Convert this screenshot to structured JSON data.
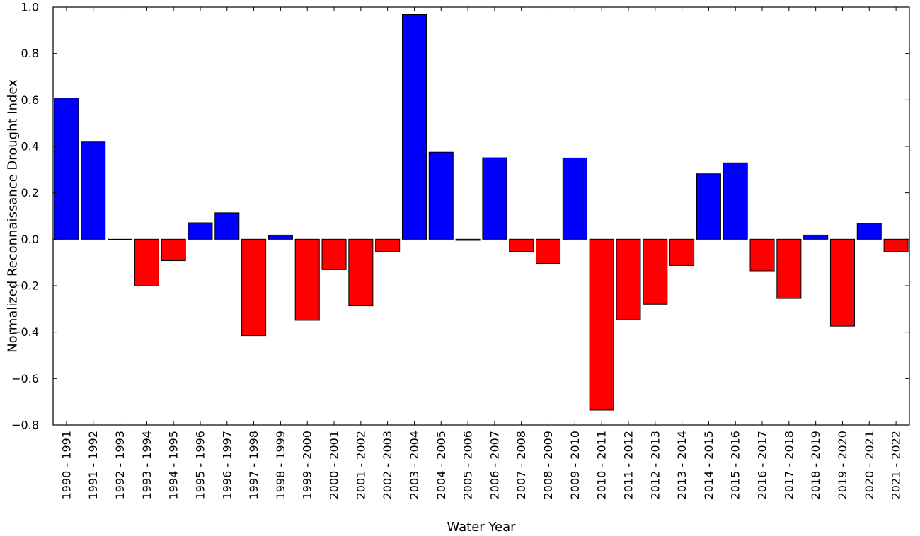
{
  "chart_data": {
    "type": "bar",
    "title": "",
    "xlabel": "Water Year",
    "ylabel": "Normalized Reconnaissance Drought Index",
    "ylim": [
      -0.8,
      1.0
    ],
    "yticks": [
      -0.8,
      -0.6,
      -0.4,
      -0.2,
      0.0,
      0.2,
      0.4,
      0.6,
      0.8,
      1.0
    ],
    "ytick_labels": [
      "−0.8",
      "−0.6",
      "−0.4",
      "−0.2",
      "0.0",
      "0.2",
      "0.4",
      "0.6",
      "0.8",
      "1.0"
    ],
    "grid": false,
    "positive_color": "#0000ff",
    "negative_color": "#ff0000",
    "categories": [
      "1990 - 1991",
      "1991 - 1992",
      "1992 - 1993",
      "1993 - 1994",
      "1994 - 1995",
      "1995 - 1996",
      "1996 - 1997",
      "1997 - 1998",
      "1998 - 1999",
      "1999 - 2000",
      "2000 - 2001",
      "2001 - 2002",
      "2002 - 2003",
      "2003 - 2004",
      "2004 - 2005",
      "2005 - 2006",
      "2006 - 2007",
      "2007 - 2008",
      "2008 - 2009",
      "2009 - 2010",
      "2010 - 2011",
      "2011 - 2012",
      "2012 - 2013",
      "2013 - 2014",
      "2014 - 2015",
      "2015 - 2016",
      "2016 - 2017",
      "2017 - 2018",
      "2018 - 2019",
      "2019 - 2020",
      "2020 - 2021",
      "2021 - 2022"
    ],
    "values": [
      0.608,
      0.419,
      -0.003,
      -0.201,
      -0.092,
      0.071,
      0.114,
      -0.415,
      0.018,
      -0.349,
      -0.131,
      -0.287,
      -0.054,
      0.968,
      0.375,
      -0.005,
      0.351,
      -0.053,
      -0.104,
      0.35,
      -0.736,
      -0.347,
      -0.28,
      -0.113,
      0.282,
      0.329,
      -0.136,
      -0.255,
      0.018,
      -0.374,
      0.069,
      -0.054
    ]
  }
}
